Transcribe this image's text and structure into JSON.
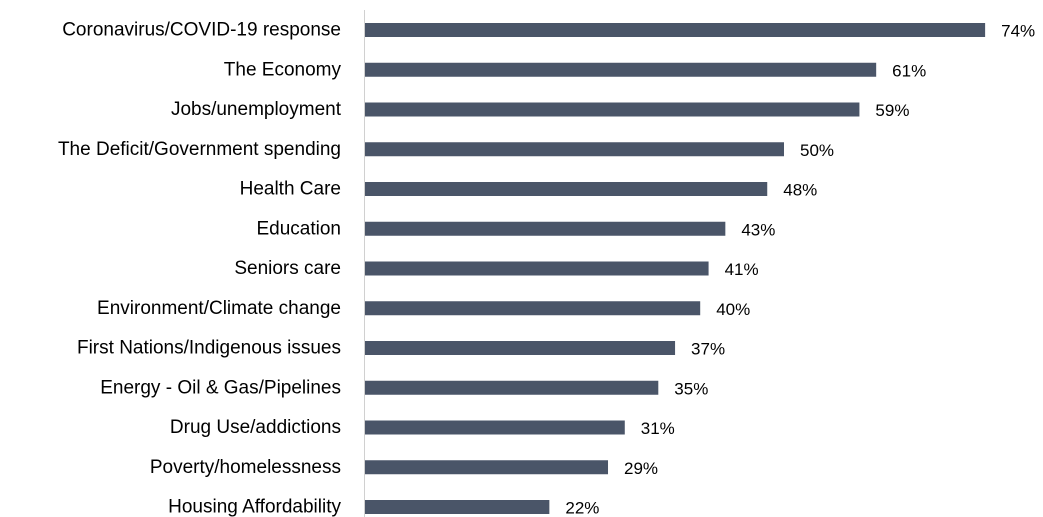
{
  "chart_data": {
    "type": "bar",
    "orientation": "horizontal",
    "title": "",
    "xlabel": "",
    "ylabel": "",
    "categories": [
      "Coronavirus/COVID-19 response",
      "The Economy",
      "Jobs/unemployment",
      "The Deficit/Government spending",
      "Health Care",
      "Education",
      "Seniors care",
      "Environment/Climate change",
      "First Nations/Indigenous issues",
      "Energy - Oil & Gas/Pipelines",
      "Drug Use/addictions",
      "Poverty/homelessness",
      "Housing Affordability"
    ],
    "values": [
      74,
      61,
      59,
      50,
      48,
      43,
      41,
      40,
      37,
      35,
      31,
      29,
      22
    ],
    "value_labels": [
      "74%",
      "61%",
      "59%",
      "50%",
      "48%",
      "43%",
      "41%",
      "40%",
      "37%",
      "35%",
      "31%",
      "29%",
      "22%"
    ],
    "value_unit": "%",
    "xlim": [
      0,
      100
    ],
    "grid": false,
    "legend": "none",
    "bar_color": "#4a5568"
  }
}
